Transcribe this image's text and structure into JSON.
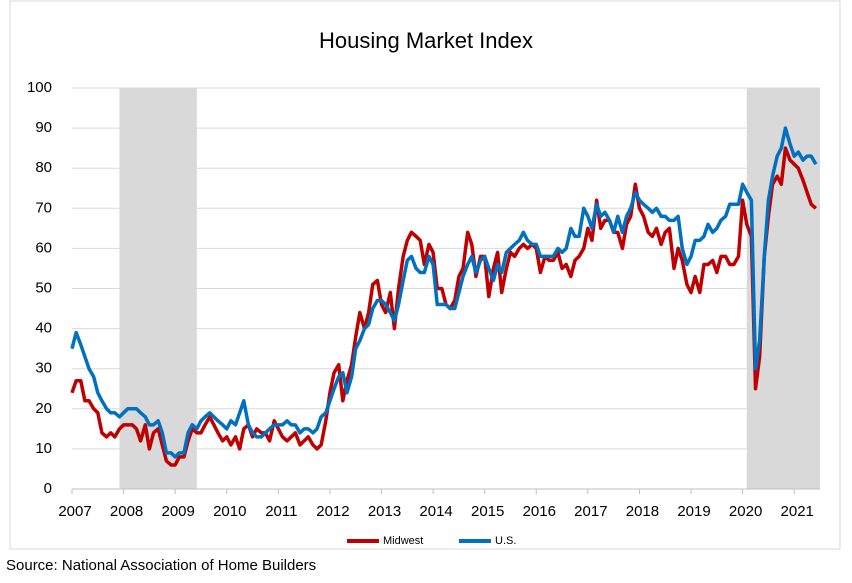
{
  "chart_data": {
    "type": "line",
    "title": "Housing Market Index",
    "source": "Source: National Association of Home Builders",
    "x": [
      2007.0,
      2007.08,
      2007.17,
      2007.25,
      2007.33,
      2007.42,
      2007.5,
      2007.58,
      2007.67,
      2007.75,
      2007.83,
      2007.92,
      2008.0,
      2008.08,
      2008.17,
      2008.25,
      2008.33,
      2008.42,
      2008.5,
      2008.58,
      2008.67,
      2008.75,
      2008.83,
      2008.92,
      2009.0,
      2009.08,
      2009.17,
      2009.25,
      2009.33,
      2009.42,
      2009.5,
      2009.58,
      2009.67,
      2009.75,
      2009.83,
      2009.92,
      2010.0,
      2010.08,
      2010.17,
      2010.25,
      2010.33,
      2010.42,
      2010.5,
      2010.58,
      2010.67,
      2010.75,
      2010.83,
      2010.92,
      2011.0,
      2011.08,
      2011.17,
      2011.25,
      2011.33,
      2011.42,
      2011.5,
      2011.58,
      2011.67,
      2011.75,
      2011.83,
      2011.92,
      2012.0,
      2012.08,
      2012.17,
      2012.25,
      2012.33,
      2012.42,
      2012.5,
      2012.58,
      2012.67,
      2012.75,
      2012.83,
      2012.92,
      2013.0,
      2013.08,
      2013.17,
      2013.25,
      2013.33,
      2013.42,
      2013.5,
      2013.58,
      2013.67,
      2013.75,
      2013.83,
      2013.92,
      2014.0,
      2014.08,
      2014.17,
      2014.25,
      2014.33,
      2014.42,
      2014.5,
      2014.58,
      2014.67,
      2014.75,
      2014.83,
      2014.92,
      2015.0,
      2015.08,
      2015.17,
      2015.25,
      2015.33,
      2015.42,
      2015.5,
      2015.58,
      2015.67,
      2015.75,
      2015.83,
      2015.92,
      2016.0,
      2016.08,
      2016.17,
      2016.25,
      2016.33,
      2016.42,
      2016.5,
      2016.58,
      2016.67,
      2016.75,
      2016.83,
      2016.92,
      2017.0,
      2017.08,
      2017.17,
      2017.25,
      2017.33,
      2017.42,
      2017.5,
      2017.58,
      2017.67,
      2017.75,
      2017.83,
      2017.92,
      2018.0,
      2018.08,
      2018.17,
      2018.25,
      2018.33,
      2018.42,
      2018.5,
      2018.58,
      2018.67,
      2018.75,
      2018.83,
      2018.92,
      2019.0,
      2019.08,
      2019.17,
      2019.25,
      2019.33,
      2019.42,
      2019.5,
      2019.58,
      2019.67,
      2019.75,
      2019.83,
      2019.92,
      2020.0,
      2020.08,
      2020.17,
      2020.25,
      2020.33,
      2020.42,
      2020.5,
      2020.58,
      2020.67,
      2020.75,
      2020.83,
      2020.92,
      2021.0,
      2021.08,
      2021.17,
      2021.25,
      2021.33,
      2021.42
    ],
    "series": [
      {
        "name": "Midwest",
        "color": "#c00000",
        "values": [
          24,
          27,
          27,
          22,
          22,
          20,
          19,
          14,
          13,
          14,
          13,
          15,
          16,
          16,
          16,
          15,
          12,
          16,
          10,
          14,
          15,
          11,
          7,
          6,
          6,
          8,
          8,
          12,
          15,
          14,
          14,
          16,
          18,
          16,
          14,
          12,
          13,
          11,
          13,
          10,
          15,
          16,
          13,
          15,
          14,
          14,
          12,
          17,
          15,
          13,
          12,
          13,
          14,
          11,
          12,
          13,
          11,
          10,
          11,
          17,
          24,
          29,
          31,
          22,
          27,
          31,
          38,
          44,
          40,
          44,
          51,
          52,
          46,
          44,
          49,
          40,
          50,
          58,
          62,
          64,
          63,
          62,
          56,
          61,
          59,
          50,
          50,
          46,
          45,
          47,
          53,
          55,
          64,
          61,
          53,
          58,
          58,
          48,
          55,
          59,
          49,
          55,
          59,
          58,
          60,
          61,
          60,
          61,
          60,
          54,
          58,
          57,
          57,
          59,
          55,
          56,
          53,
          57,
          58,
          60,
          65,
          62,
          72,
          65,
          67,
          67,
          64,
          64,
          60,
          66,
          68,
          76,
          70,
          68,
          64,
          63,
          65,
          61,
          64,
          65,
          55,
          60,
          57,
          51,
          49,
          53,
          49,
          56,
          56,
          57,
          54,
          58,
          58,
          56,
          56,
          58,
          72,
          66,
          63,
          25,
          33,
          58,
          68,
          76,
          78,
          76,
          85,
          82,
          81,
          80,
          77,
          74,
          71,
          70
        ]
      },
      {
        "name": "U.S.",
        "color": "#0070c0",
        "values": [
          35,
          39,
          36,
          33,
          30,
          28,
          24,
          22,
          20,
          19,
          19,
          18,
          19,
          20,
          20,
          20,
          19,
          18,
          16,
          16,
          17,
          14,
          9,
          9,
          8,
          9,
          9,
          14,
          16,
          15,
          17,
          18,
          19,
          18,
          17,
          16,
          15,
          17,
          16,
          19,
          22,
          16,
          14,
          13,
          13,
          14,
          15,
          16,
          16,
          16,
          17,
          16,
          16,
          14,
          15,
          15,
          14,
          15,
          18,
          19,
          22,
          25,
          28,
          29,
          24,
          28,
          35,
          37,
          40,
          41,
          45,
          47,
          47,
          46,
          44,
          42,
          46,
          52,
          57,
          58,
          55,
          54,
          54,
          58,
          56,
          46,
          46,
          46,
          45,
          45,
          49,
          53,
          56,
          58,
          54,
          57,
          58,
          55,
          52,
          56,
          54,
          59,
          60,
          61,
          62,
          64,
          62,
          61,
          61,
          58,
          58,
          58,
          58,
          60,
          59,
          60,
          65,
          63,
          63,
          70,
          68,
          65,
          71,
          68,
          69,
          67,
          64,
          68,
          64,
          68,
          70,
          74,
          72,
          71,
          70,
          69,
          70,
          68,
          68,
          67,
          67,
          68,
          60,
          56,
          58,
          62,
          62,
          63,
          66,
          64,
          65,
          67,
          68,
          71,
          71,
          71,
          76,
          74,
          72,
          30,
          37,
          58,
          72,
          78,
          83,
          85,
          90,
          86,
          83,
          84,
          82,
          83,
          83,
          81
        ]
      }
    ],
    "shaded_periods": [
      [
        2007.92,
        2009.42
      ],
      [
        2020.08,
        2021.5
      ]
    ],
    "xlim": [
      2007,
      2021.5
    ],
    "xticks": [
      2007,
      2008,
      2009,
      2010,
      2011,
      2012,
      2013,
      2014,
      2015,
      2016,
      2017,
      2018,
      2019,
      2020,
      2021
    ],
    "ylim": [
      0,
      100
    ],
    "yticks": [
      0,
      10,
      20,
      30,
      40,
      50,
      60,
      70,
      80,
      90,
      100
    ],
    "grid": true,
    "legend": "bottom"
  }
}
